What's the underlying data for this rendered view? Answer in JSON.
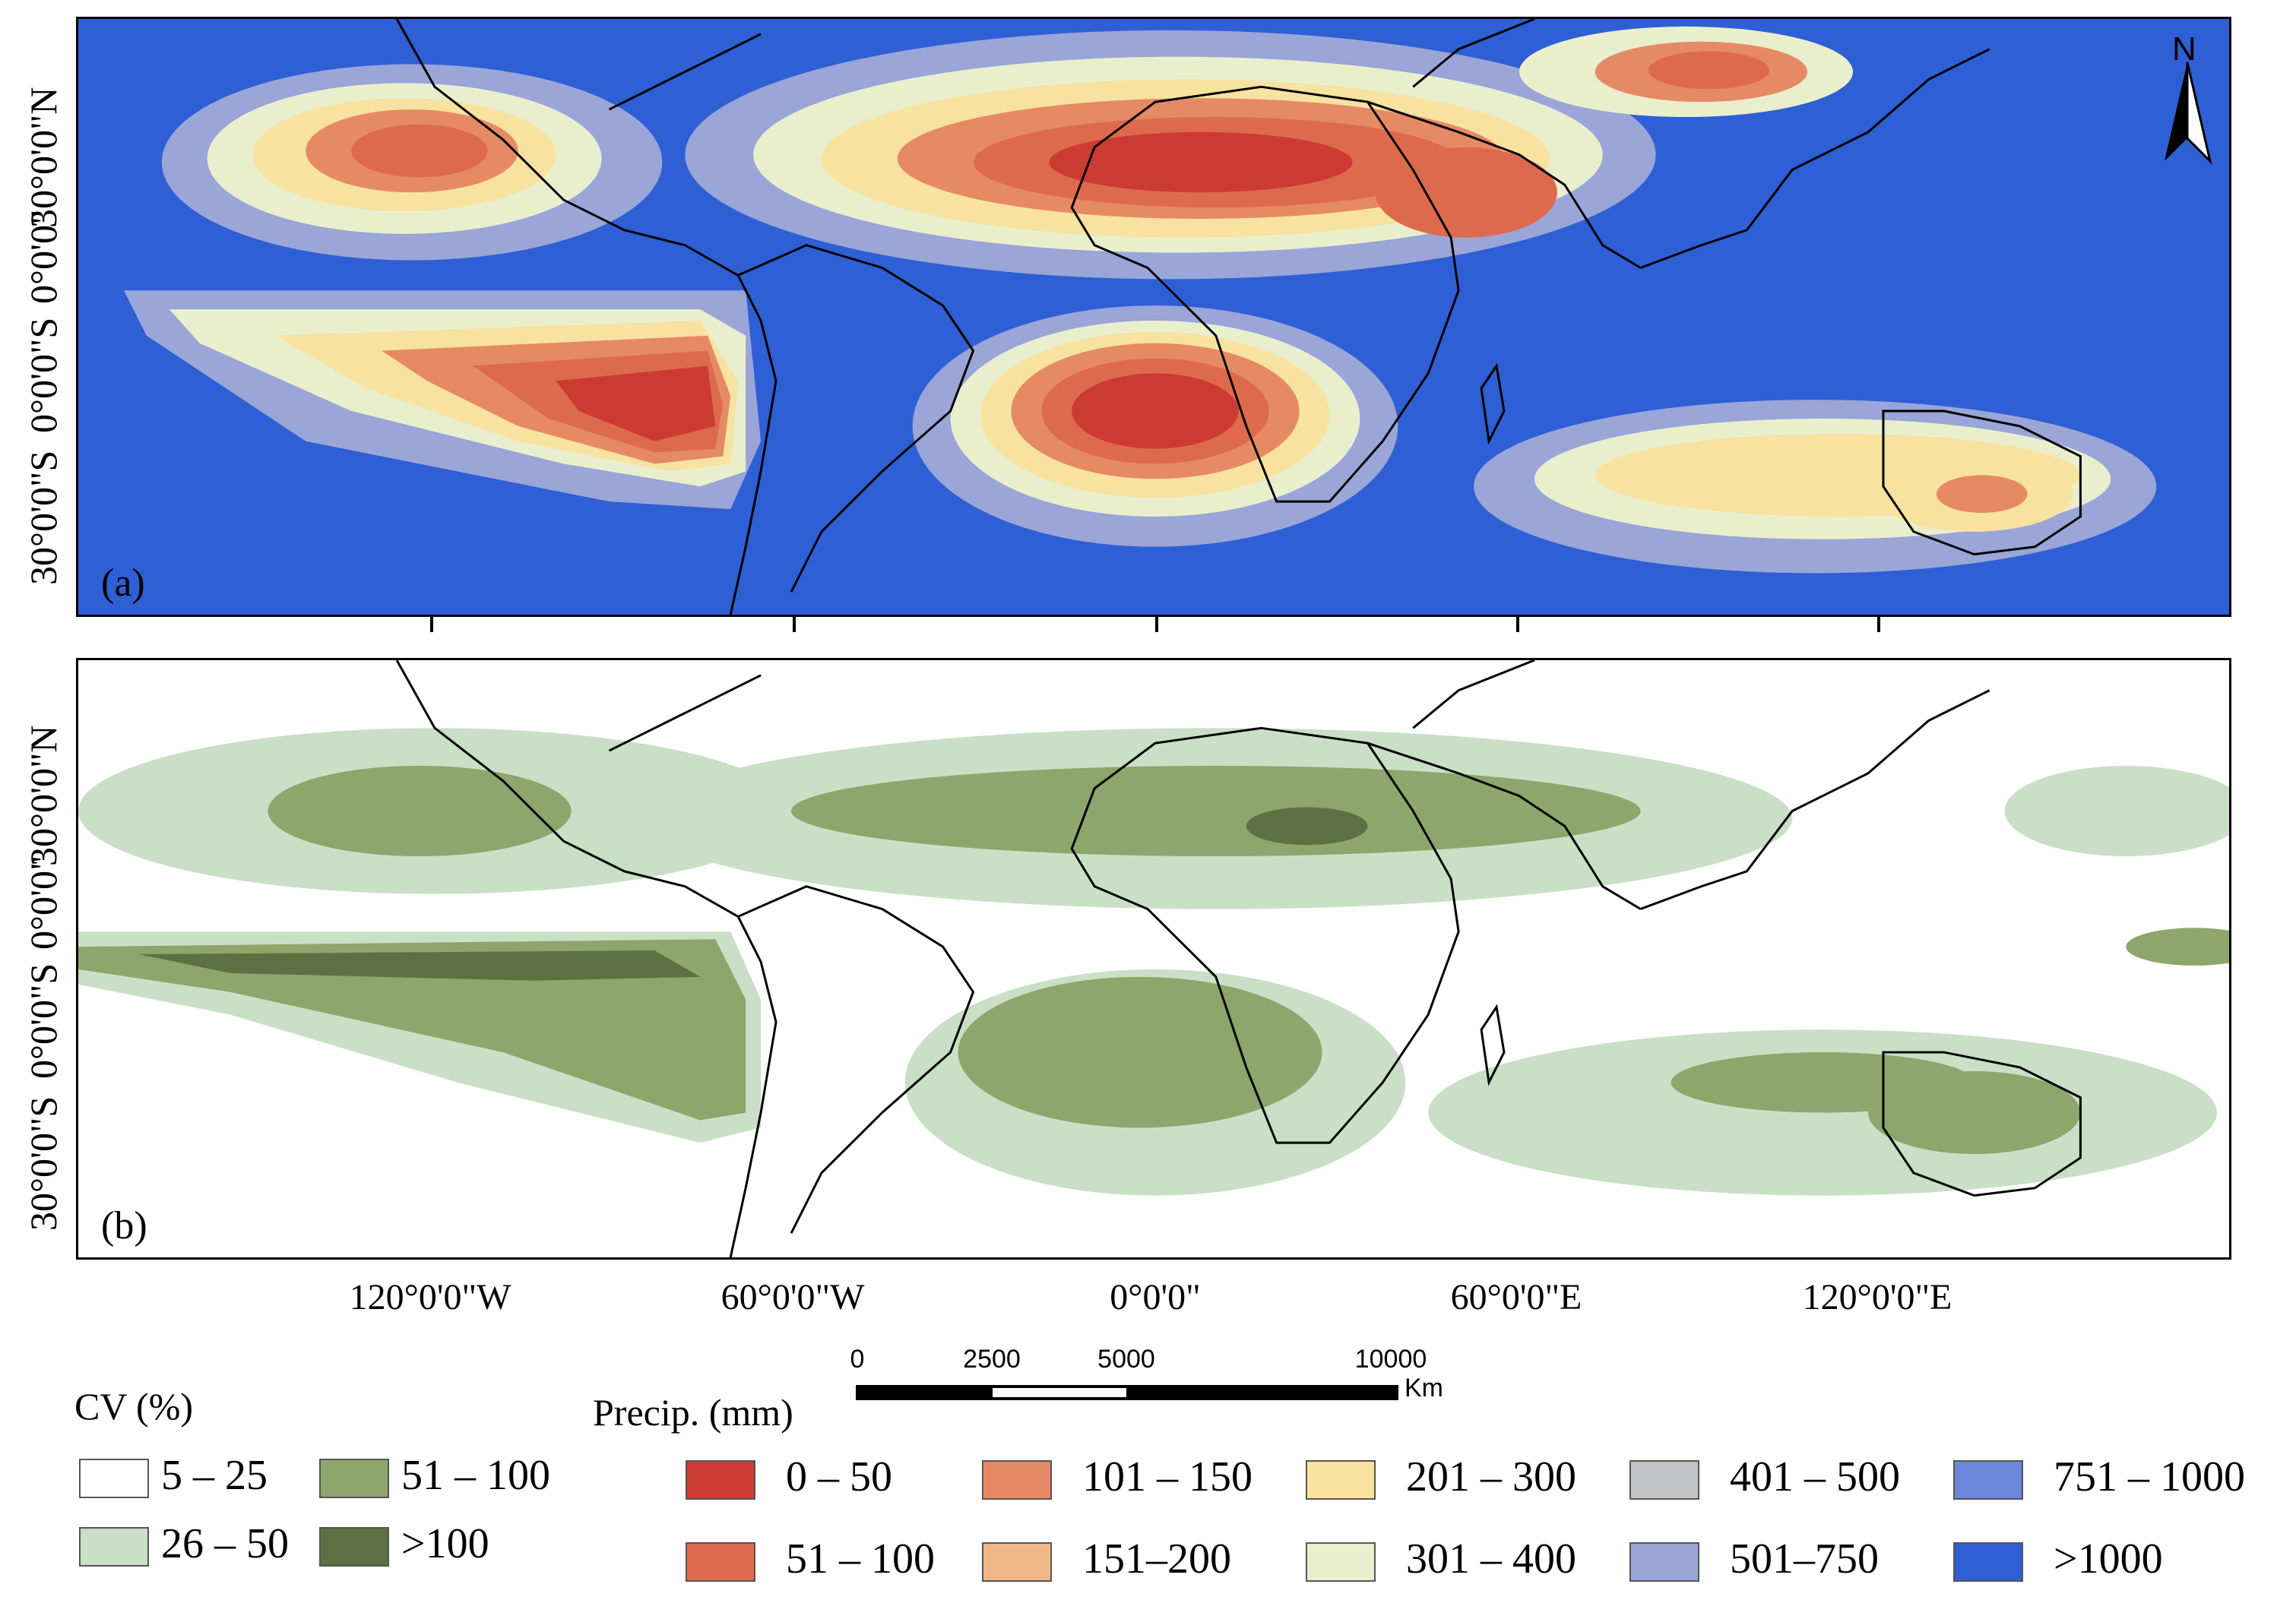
{
  "panels": {
    "a": {
      "label": "(a)"
    },
    "b": {
      "label": "(b)"
    }
  },
  "axes": {
    "lat_labels": [
      "30°0'0\"N",
      "0°0'0\"",
      "0°0'0\"S",
      "30°0'0\"S"
    ],
    "lon_labels": [
      "120°0'0\"W",
      "60°0'0\"W",
      "0°0'0\"",
      "60°0'0\"E",
      "120°0'0\"E"
    ]
  },
  "north_arrow": {
    "letter": "N"
  },
  "scale_bar": {
    "ticks": [
      "0",
      "2500",
      "5000",
      "10000"
    ],
    "unit": "Km"
  },
  "legend_cv": {
    "title": "CV (%)",
    "items": [
      {
        "label": "5 – 25",
        "color": "#ffffff"
      },
      {
        "label": "51 – 100",
        "color": "#8da66b"
      },
      {
        "label": "26 – 50",
        "color": "#c9dfc6"
      },
      {
        "label": ">100",
        "color": "#5d7043"
      }
    ]
  },
  "legend_precip": {
    "title": "Precip. (mm)",
    "items": [
      {
        "label": "0 – 50",
        "color": "#cc3b32"
      },
      {
        "label": "101 – 150",
        "color": "#e68a66"
      },
      {
        "label": "201 – 300",
        "color": "#f7e2a0"
      },
      {
        "label": "401 – 500",
        "color": "#c2c4c8"
      },
      {
        "label": "751 – 1000",
        "color": "#6b87d9"
      },
      {
        "label": "51 – 100",
        "color": "#de6a4e"
      },
      {
        "label": "151–200",
        "color": "#f0b888"
      },
      {
        "label": "301 – 400",
        "color": "#e9eecd"
      },
      {
        "label": "501–750",
        "color": "#9aa5d8"
      },
      {
        "label": ">1000",
        "color": "#2f5fd4"
      }
    ]
  }
}
